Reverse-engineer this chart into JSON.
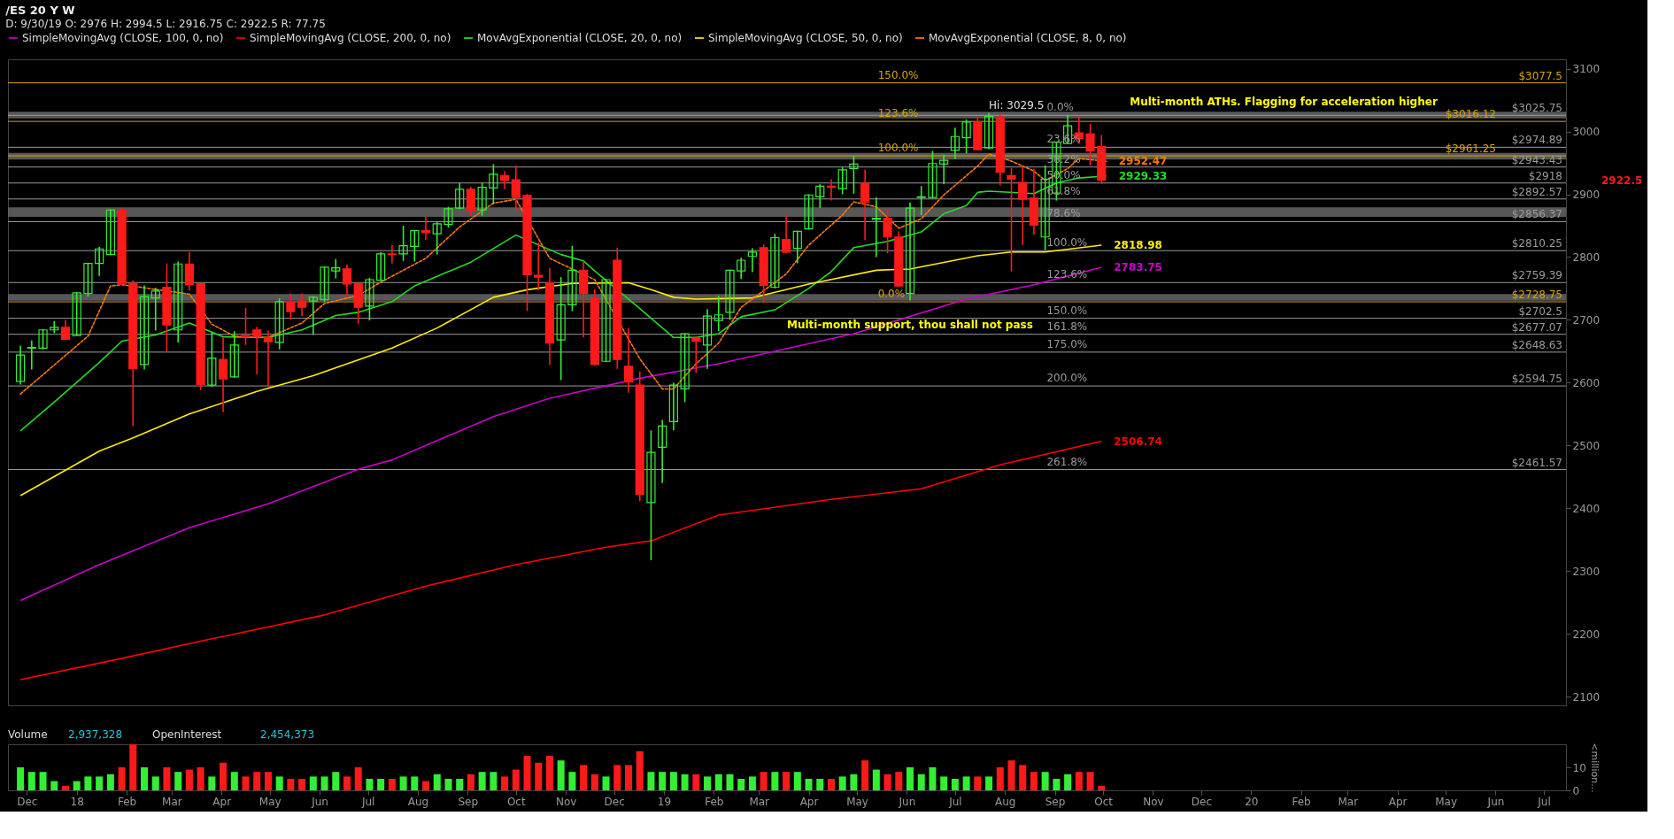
{
  "chart_data": [
    {
      "type": "candlestick",
      "title": "/ES 20 Y W",
      "subtitle": "D: 9/30/19   O: 2976   H: 2994.5   L: 2916.75   C: 2922.5   R: 77.75",
      "x": [
        "2017-11-27",
        "2017-12-04",
        "2017-12-11",
        "2017-12-18",
        "2017-12-25",
        "2018-01-01",
        "2018-01-08",
        "2018-01-15",
        "2018-01-22",
        "2018-01-29",
        "2018-02-05",
        "2018-02-12",
        "2018-02-19",
        "2018-02-26",
        "2018-03-05",
        "2018-03-12",
        "2018-03-19",
        "2018-03-26",
        "2018-04-02",
        "2018-04-09",
        "2018-04-16",
        "2018-04-23",
        "2018-04-30",
        "2018-05-07",
        "2018-05-14",
        "2018-05-21",
        "2018-05-28",
        "2018-06-04",
        "2018-06-11",
        "2018-06-18",
        "2018-06-25",
        "2018-07-02",
        "2018-07-09",
        "2018-07-16",
        "2018-07-23",
        "2018-07-30",
        "2018-08-06",
        "2018-08-13",
        "2018-08-20",
        "2018-08-27",
        "2018-09-03",
        "2018-09-10",
        "2018-09-17",
        "2018-09-24",
        "2018-10-01",
        "2018-10-08",
        "2018-10-15",
        "2018-10-22",
        "2018-10-29",
        "2018-11-05",
        "2018-11-12",
        "2018-11-19",
        "2018-11-26",
        "2018-12-03",
        "2018-12-10",
        "2018-12-17",
        "2018-12-24",
        "2018-12-31",
        "2019-01-07",
        "2019-01-14",
        "2019-01-21",
        "2019-01-28",
        "2019-02-04",
        "2019-02-11",
        "2019-02-18",
        "2019-02-25",
        "2019-03-04",
        "2019-03-11",
        "2019-03-18",
        "2019-03-25",
        "2019-04-01",
        "2019-04-08",
        "2019-04-15",
        "2019-04-22",
        "2019-04-29",
        "2019-05-06",
        "2019-05-13",
        "2019-05-20",
        "2019-05-27",
        "2019-06-03",
        "2019-06-10",
        "2019-06-17",
        "2019-06-24",
        "2019-07-01",
        "2019-07-08",
        "2019-07-15",
        "2019-07-22",
        "2019-07-29",
        "2019-08-05",
        "2019-08-12",
        "2019-08-19",
        "2019-08-26",
        "2019-09-02",
        "2019-09-09",
        "2019-09-16",
        "2019-09-23",
        "2019-09-30"
      ],
      "ohlc": [
        [
          2602,
          2659,
          2597,
          2644
        ],
        [
          2655,
          2667,
          2621,
          2656
        ],
        [
          2655,
          2685,
          2653,
          2684
        ],
        [
          2684,
          2698,
          2679,
          2688
        ],
        [
          2688,
          2700,
          2668,
          2669
        ],
        [
          2675,
          2744,
          2675,
          2743
        ],
        [
          2742,
          2791,
          2737,
          2790
        ],
        [
          2790,
          2816,
          2770,
          2813
        ],
        [
          2804,
          2876,
          2803,
          2875
        ],
        [
          2875,
          2879,
          2756,
          2757
        ],
        [
          2758,
          2763,
          2531,
          2622
        ],
        [
          2629,
          2755,
          2621,
          2737
        ],
        [
          2735,
          2751,
          2683,
          2746
        ],
        [
          2752,
          2790,
          2648,
          2692
        ],
        [
          2684,
          2793,
          2664,
          2789
        ],
        [
          2789,
          2808,
          2747,
          2756
        ],
        [
          2758,
          2758,
          2588,
          2597
        ],
        [
          2596,
          2680,
          2593,
          2639
        ],
        [
          2637,
          2672,
          2553,
          2606
        ],
        [
          2609,
          2682,
          2608,
          2660
        ],
        [
          2675,
          2719,
          2660,
          2673
        ],
        [
          2684,
          2689,
          2613,
          2673
        ],
        [
          2672,
          2683,
          2593,
          2665
        ],
        [
          2664,
          2734,
          2653,
          2729
        ],
        [
          2729,
          2742,
          2700,
          2713
        ],
        [
          2730,
          2742,
          2706,
          2720
        ],
        [
          2730,
          2738,
          2676,
          2736
        ],
        [
          2732,
          2785,
          2729,
          2784
        ],
        [
          2778,
          2797,
          2766,
          2783
        ],
        [
          2781,
          2788,
          2736,
          2757
        ],
        [
          2758,
          2758,
          2694,
          2720
        ],
        [
          2722,
          2767,
          2699,
          2764
        ],
        [
          2763,
          2808,
          2762,
          2805
        ],
        [
          2805,
          2819,
          2790,
          2804
        ],
        [
          2805,
          2850,
          2794,
          2818
        ],
        [
          2817,
          2843,
          2793,
          2842
        ],
        [
          2842,
          2864,
          2827,
          2839
        ],
        [
          2837,
          2857,
          2804,
          2853
        ],
        [
          2852,
          2880,
          2847,
          2877
        ],
        [
          2878,
          2918,
          2876,
          2908
        ],
        [
          2908,
          2912,
          2866,
          2874
        ],
        [
          2875,
          2918,
          2866,
          2911
        ],
        [
          2910,
          2948,
          2884,
          2932
        ],
        [
          2930,
          2937,
          2908,
          2922
        ],
        [
          2923,
          2946,
          2874,
          2895
        ],
        [
          2898,
          2901,
          2714,
          2772
        ],
        [
          2771,
          2823,
          2747,
          2768
        ],
        [
          2759,
          2783,
          2628,
          2663
        ],
        [
          2668,
          2768,
          2604,
          2724
        ],
        [
          2724,
          2818,
          2714,
          2779
        ],
        [
          2779,
          2793,
          2672,
          2742
        ],
        [
          2734,
          2749,
          2627,
          2629
        ],
        [
          2634,
          2765,
          2633,
          2764
        ],
        [
          2795,
          2815,
          2622,
          2637
        ],
        [
          2626,
          2687,
          2584,
          2601
        ],
        [
          2596,
          2618,
          2411,
          2422
        ],
        [
          2409,
          2524,
          2317,
          2489
        ],
        [
          2497,
          2541,
          2440,
          2531
        ],
        [
          2538,
          2600,
          2524,
          2596
        ],
        [
          2590,
          2679,
          2569,
          2678
        ],
        [
          2671,
          2673,
          2615,
          2666
        ],
        [
          2660,
          2717,
          2622,
          2706
        ],
        [
          2699,
          2738,
          2682,
          2708
        ],
        [
          2712,
          2780,
          2700,
          2779
        ],
        [
          2778,
          2799,
          2765,
          2795
        ],
        [
          2801,
          2814,
          2776,
          2808
        ],
        [
          2815,
          2820,
          2727,
          2755
        ],
        [
          2752,
          2837,
          2750,
          2831
        ],
        [
          2828,
          2867,
          2806,
          2808
        ],
        [
          2814,
          2842,
          2790,
          2841
        ],
        [
          2845,
          2900,
          2844,
          2899
        ],
        [
          2896,
          2916,
          2878,
          2913
        ],
        [
          2913,
          2924,
          2890,
          2911
        ],
        [
          2909,
          2943,
          2900,
          2939
        ],
        [
          2941,
          2961,
          2901,
          2948
        ],
        [
          2918,
          2939,
          2827,
          2887
        ],
        [
          2860,
          2895,
          2800,
          2862
        ],
        [
          2862,
          2877,
          2806,
          2832
        ],
        [
          2832,
          2841,
          2753,
          2754
        ],
        [
          2742,
          2887,
          2731,
          2878
        ],
        [
          2895,
          2913,
          2867,
          2896
        ],
        [
          2895,
          2969,
          2894,
          2949
        ],
        [
          2948,
          2963,
          2916,
          2954
        ],
        [
          2970,
          3006,
          2956,
          2992
        ],
        [
          2990,
          3019,
          2965,
          3015
        ],
        [
          3015,
          3024,
          2970,
          2971
        ],
        [
          2974,
          3029.5,
          2972,
          3024
        ],
        [
          3023,
          3027,
          2914,
          2935
        ],
        [
          2930,
          2942,
          2777,
          2924
        ],
        [
          2919,
          2944,
          2819,
          2892
        ],
        [
          2894,
          2941,
          2836,
          2851
        ],
        [
          2832,
          2946,
          2811,
          2924
        ],
        [
          2902,
          2984,
          2890,
          2983
        ],
        [
          2981,
          3026,
          2980,
          3009
        ],
        [
          2998,
          3025,
          2980,
          2989
        ],
        [
          2996,
          3012,
          2946,
          2969
        ],
        [
          2976,
          2994.5,
          2916.75,
          2922.5
        ]
      ],
      "colors": [
        "#33ee33",
        "#33ee33",
        "#33ee33",
        "#33ee33",
        "#ff1a1a",
        "#33ee33",
        "#33ee33",
        "#33ee33",
        "#33ee33",
        "#ff1a1a",
        "#ff1a1a",
        "#33ee33",
        "#33ee33",
        "#ff1a1a",
        "#33ee33",
        "#ff1a1a",
        "#ff1a1a",
        "#33ee33",
        "#ff1a1a",
        "#33ee33",
        "#ff1a1a",
        "#ff1a1a",
        "#ff1a1a",
        "#33ee33",
        "#ff1a1a",
        "#ff1a1a",
        "#33ee33",
        "#33ee33",
        "#33ee33",
        "#ff1a1a",
        "#ff1a1a",
        "#33ee33",
        "#33ee33",
        "#ff1a1a",
        "#33ee33",
        "#33ee33",
        "#ff1a1a",
        "#33ee33",
        "#33ee33",
        "#33ee33",
        "#ff1a1a",
        "#33ee33",
        "#33ee33",
        "#ff1a1a",
        "#ff1a1a",
        "#ff1a1a",
        "#ff1a1a",
        "#ff1a1a",
        "#33ee33",
        "#33ee33",
        "#ff1a1a",
        "#ff1a1a",
        "#33ee33",
        "#ff1a1a",
        "#ff1a1a",
        "#ff1a1a",
        "#33ee33",
        "#33ee33",
        "#33ee33",
        "#33ee33",
        "#ff1a1a",
        "#33ee33",
        "#33ee33",
        "#33ee33",
        "#33ee33",
        "#33ee33",
        "#ff1a1a",
        "#33ee33",
        "#ff1a1a",
        "#33ee33",
        "#33ee33",
        "#33ee33",
        "#ff1a1a",
        "#33ee33",
        "#33ee33",
        "#ff1a1a",
        "#33ee33",
        "#ff1a1a",
        "#ff1a1a",
        "#33ee33",
        "#33ee33",
        "#33ee33",
        "#33ee33",
        "#33ee33",
        "#33ee33",
        "#ff1a1a",
        "#33ee33",
        "#ff1a1a",
        "#ff1a1a",
        "#ff1a1a",
        "#ff1a1a",
        "#33ee33",
        "#33ee33",
        "#33ee33",
        "#ff1a1a",
        "#ff1a1a",
        "#ff1a1a"
      ],
      "series": [
        {
          "type": "line",
          "name": "SimpleMovingAvg (CLOSE, 100, 0, no)",
          "color": "#cc00cc",
          "line_style": "solid",
          "x": [
            "2017-11-27",
            "2018-01-15",
            "2018-03-12",
            "2018-04-30",
            "2018-06-25",
            "2018-07-16",
            "2018-09-17",
            "2018-10-22",
            "2018-12-17",
            "2019-02-04",
            "2019-02-25",
            "2019-04-29",
            "2019-07-08",
            "2019-08-19",
            "2019-09-30"
          ],
          "values": [
            2253,
            2310,
            2369,
            2407,
            2462,
            2477,
            2546,
            2575,
            2607,
            2630,
            2642,
            2678,
            2733,
            2756,
            2783.75
          ],
          "value_labels": [
            null,
            null,
            null,
            null,
            null,
            null,
            null,
            null,
            null,
            null,
            null,
            null,
            null,
            null,
            "2783.75"
          ]
        },
        {
          "type": "line",
          "name": "SimpleMovingAvg (CLOSE, 200, 0, no)",
          "color": "#ff0000",
          "line_style": "solid",
          "x": [
            "2017-11-27",
            "2018-01-22",
            "2018-03-26",
            "2018-06-04",
            "2018-08-06",
            "2018-10-01",
            "2018-11-26",
            "2018-12-24",
            "2019-02-04",
            "2019-04-15",
            "2019-06-10",
            "2019-07-29",
            "2019-09-30"
          ],
          "values": [
            2127,
            2157,
            2192,
            2230,
            2276,
            2310,
            2338,
            2348,
            2389,
            2414,
            2431,
            2469,
            2506.74
          ],
          "value_labels": [
            null,
            null,
            null,
            null,
            null,
            null,
            null,
            null,
            null,
            null,
            null,
            null,
            "2506.74"
          ]
        },
        {
          "type": "line",
          "name": "MovAvgExponential (CLOSE, 20, 0, no)",
          "color": "#22dd22",
          "line_style": "solid",
          "x": [
            "2017-11-27",
            "2017-12-18",
            "2018-01-15",
            "2018-01-29",
            "2018-02-19",
            "2018-03-12",
            "2018-04-02",
            "2018-04-30",
            "2018-05-21",
            "2018-06-11",
            "2018-06-25",
            "2018-07-16",
            "2018-07-30",
            "2018-09-03",
            "2018-10-01",
            "2018-10-29",
            "2018-11-12",
            "2018-11-19",
            "2018-12-17",
            "2019-01-07",
            "2019-01-21",
            "2019-02-04",
            "2019-02-18",
            "2019-03-11",
            "2019-04-01",
            "2019-04-15",
            "2019-04-29",
            "2019-05-20",
            "2019-06-10",
            "2019-06-24",
            "2019-07-08",
            "2019-07-15",
            "2019-07-22",
            "2019-08-19",
            "2019-09-02",
            "2019-09-16",
            "2019-10-03"
          ],
          "values": [
            2523,
            2569,
            2632,
            2666,
            2676,
            2695,
            2673,
            2672,
            2684,
            2707,
            2712,
            2729,
            2754,
            2792,
            2835,
            2804,
            2794,
            2778,
            2718,
            2672,
            2672,
            2678,
            2705,
            2716,
            2750,
            2777,
            2815,
            2825,
            2840,
            2869,
            2882,
            2903,
            2905,
            2901,
            2918,
            2926,
            2929.33
          ],
          "value_labels": [
            null,
            null,
            null,
            null,
            null,
            null,
            null,
            null,
            null,
            null,
            null,
            null,
            null,
            null,
            null,
            null,
            null,
            null,
            null,
            null,
            null,
            null,
            null,
            null,
            null,
            null,
            null,
            null,
            null,
            null,
            null,
            null,
            null,
            null,
            null,
            null,
            "2929.33"
          ]
        },
        {
          "type": "line",
          "name": "SimpleMovingAvg (CLOSE, 50, 0, no)",
          "color": "#ffee00",
          "line_style": "solid",
          "x": [
            "2017-11-27",
            "2018-01-15",
            "2018-02-05",
            "2018-03-12",
            "2018-04-23",
            "2018-05-28",
            "2018-07-16",
            "2018-08-13",
            "2018-09-17",
            "2018-10-08",
            "2018-11-05",
            "2018-12-10",
            "2018-12-24",
            "2019-01-07",
            "2019-01-21",
            "2019-02-25",
            "2019-04-01",
            "2019-05-13",
            "2019-06-03",
            "2019-07-15",
            "2019-08-05",
            "2019-08-26",
            "2019-09-30"
          ],
          "value_labels": [
            null,
            null,
            null,
            null,
            null,
            null,
            null,
            null,
            null,
            null,
            null,
            null,
            null,
            null,
            null,
            null,
            null,
            null,
            null,
            null,
            null,
            null,
            "2818.98"
          ],
          "values": [
            2420,
            2491,
            2512,
            2550,
            2586,
            2611,
            2655,
            2687,
            2736,
            2748,
            2758,
            2759,
            2748,
            2736,
            2733,
            2735,
            2757,
            2779,
            2781,
            2802,
            2808,
            2808,
            2818.98
          ]
        },
        {
          "type": "line",
          "name": "MovAvgExponential (CLOSE, 8, 0, no)",
          "color": "#ff7700",
          "line_style": "dashed",
          "x": [
            "2017-11-27",
            "2017-12-18",
            "2018-01-08",
            "2018-01-22",
            "2018-01-29",
            "2018-03-12",
            "2018-03-26",
            "2018-04-09",
            "2018-04-23",
            "2018-04-30",
            "2018-05-21",
            "2018-06-04",
            "2018-06-25",
            "2018-07-09",
            "2018-08-06",
            "2018-08-27",
            "2018-09-17",
            "2018-10-01",
            "2018-10-22",
            "2018-11-05",
            "2018-11-19",
            "2018-12-17",
            "2018-12-31",
            "2019-01-07",
            "2019-01-21",
            "2019-02-04",
            "2019-02-18",
            "2019-03-18",
            "2019-04-01",
            "2019-04-22",
            "2019-04-29",
            "2019-05-13",
            "2019-05-27",
            "2019-06-10",
            "2019-06-24",
            "2019-07-15",
            "2019-07-22",
            "2019-08-05",
            "2019-08-19",
            "2019-08-26",
            "2019-09-09",
            "2019-09-16",
            "2019-10-03"
          ],
          "values": [
            2582,
            2628,
            2674,
            2754,
            2756,
            2741,
            2693,
            2674,
            2672,
            2672,
            2695,
            2726,
            2739,
            2760,
            2798,
            2848,
            2886,
            2892,
            2798,
            2781,
            2764,
            2638,
            2590,
            2590,
            2630,
            2663,
            2720,
            2773,
            2819,
            2867,
            2888,
            2880,
            2846,
            2861,
            2899,
            2945,
            2964,
            2953,
            2937,
            2922,
            2941,
            2957,
            2952.47
          ],
          "value_labels": [
            null,
            null,
            null,
            null,
            null,
            null,
            null,
            null,
            null,
            null,
            null,
            null,
            null,
            null,
            null,
            null,
            null,
            null,
            null,
            null,
            null,
            null,
            null,
            null,
            null,
            null,
            null,
            null,
            null,
            null,
            null,
            null,
            null,
            null,
            null,
            null,
            null,
            null,
            null,
            null,
            null,
            null,
            "2952.47"
          ]
        }
      ],
      "bands": [
        {
          "axis": "y",
          "from": 3020.8,
          "to": 3031.4,
          "color": "#666666"
        },
        {
          "axis": "y",
          "from": 2955.4,
          "to": 2966,
          "color": "#666666"
        },
        {
          "axis": "y",
          "from": 2864.2,
          "to": 2879.4,
          "color": "#666666"
        },
        {
          "axis": "y",
          "from": 2730.4,
          "to": 2741,
          "color": "#666666"
        }
      ],
      "ref_lines": [
        {
          "axis": "y",
          "value": 3077.5,
          "label": "$3077.5",
          "color": "#d9a400",
          "line_style": "solid"
        },
        {
          "axis": "y",
          "value": 3025.75,
          "label": "$3025.75",
          "color": "#9a9a9a",
          "line_style": "solid"
        },
        {
          "axis": "y",
          "value": 3016.12,
          "label": "$3016.12",
          "color": "#d9a400",
          "line_style": "solid"
        },
        {
          "axis": "y",
          "value": 2974.89,
          "label": "$2974.89",
          "color": "#9a9a9a",
          "line_style": "solid"
        },
        {
          "axis": "y",
          "value": 2961.25,
          "label": "$2961.25",
          "color": "#d9a400",
          "line_style": "solid"
        },
        {
          "axis": "y",
          "value": 2943.43,
          "label": "$2943.43",
          "color": "#9a9a9a",
          "line_style": "solid"
        },
        {
          "axis": "y",
          "value": 2918,
          "label": "$2918",
          "color": "#9a9a9a",
          "line_style": "solid"
        },
        {
          "axis": "y",
          "value": 2892.57,
          "label": "$2892.57",
          "color": "#9a9a9a",
          "line_style": "solid"
        },
        {
          "axis": "y",
          "value": 2856.37,
          "label": "$2856.37",
          "color": "#9a9a9a",
          "line_style": "solid"
        },
        {
          "axis": "y",
          "value": 2810.25,
          "label": "$2810.25",
          "color": "#9a9a9a",
          "line_style": "solid"
        },
        {
          "axis": "y",
          "value": 2759.39,
          "label": "$2759.39",
          "color": "#9a9a9a",
          "line_style": "solid"
        },
        {
          "axis": "y",
          "value": 2728.75,
          "label": "$2728.75",
          "color": "#d9a400",
          "line_style": "solid"
        },
        {
          "axis": "y",
          "value": 2702.5,
          "label": "$2702.5",
          "color": "#9a9a9a",
          "line_style": "solid"
        },
        {
          "axis": "y",
          "value": 2677.07,
          "label": "$2677.07",
          "color": "#9a9a9a",
          "line_style": "solid"
        },
        {
          "axis": "y",
          "value": 2648.63,
          "label": "$2648.63",
          "color": "#9a9a9a",
          "line_style": "solid"
        },
        {
          "axis": "y",
          "value": 2594.75,
          "label": "$2594.75",
          "color": "#9a9a9a",
          "line_style": "solid"
        },
        {
          "axis": "y",
          "value": 2461.57,
          "label": "$2461.57",
          "color": "#9a9a9a",
          "line_style": "solid"
        }
      ],
      "annotations": [
        {
          "text": "150.0%",
          "x": "2019-05-14",
          "y": 3077.5
        },
        {
          "text": "123.6%",
          "x": "2019-05-14",
          "y": 3016.12
        },
        {
          "text": "100.0%",
          "x": "2019-05-14",
          "y": 2961.25
        },
        {
          "text": "0.0%",
          "x": "2019-05-14",
          "y": 2728.75
        },
        {
          "text": "0.0%",
          "x": "2019-08-27",
          "y": 3025.75
        },
        {
          "text": "23.6%",
          "x": "2019-08-27",
          "y": 2974.89
        },
        {
          "text": "38.2%",
          "x": "2019-08-27",
          "y": 2943.43
        },
        {
          "text": "50.0%",
          "x": "2019-08-27",
          "y": 2918
        },
        {
          "text": "61.8%",
          "x": "2019-08-27",
          "y": 2892.57
        },
        {
          "text": "78.6%",
          "x": "2019-08-27",
          "y": 2856.37
        },
        {
          "text": "100.0%",
          "x": "2019-08-27",
          "y": 2810.25
        },
        {
          "text": "123.6%",
          "x": "2019-08-27",
          "y": 2759.39
        },
        {
          "text": "150.0%",
          "x": "2019-08-27",
          "y": 2702.5
        },
        {
          "text": "161.8%",
          "x": "2019-08-27",
          "y": 2677.07
        },
        {
          "text": "175.0%",
          "x": "2019-08-27",
          "y": 2648.63
        },
        {
          "text": "200.0%",
          "x": "2019-08-27",
          "y": 2594.75
        },
        {
          "text": "261.8%",
          "x": "2019-08-27",
          "y": 2461.57
        },
        {
          "text": "Hi: 3029.5",
          "x": "2019-07-22",
          "y": 3029.5
        },
        "Multi-month ATHs. Flagging for acceleration higher",
        "Multi-month support, thou shall not pass",
        "2922.5"
      ],
      "xlim": [
        "2017-11-22",
        "2020-07-12"
      ],
      "ylim": [
        2086,
        3115
      ],
      "yticks": [
        2100,
        2200,
        2300,
        2400,
        2500,
        2600,
        2700,
        2800,
        2900,
        3000,
        3100
      ],
      "tick_labels": "y",
      "legend": "top",
      "grid": false
    },
    {
      "type": "bar",
      "title": "Volume",
      "ylabel": "<million...",
      "x": [
        "2017-11-27",
        "2017-12-04",
        "2017-12-11",
        "2017-12-18",
        "2017-12-25",
        "2018-01-01",
        "2018-01-08",
        "2018-01-15",
        "2018-01-22",
        "2018-01-29",
        "2018-02-05",
        "2018-02-12",
        "2018-02-19",
        "2018-02-26",
        "2018-03-05",
        "2018-03-12",
        "2018-03-19",
        "2018-03-26",
        "2018-04-02",
        "2018-04-09",
        "2018-04-16",
        "2018-04-23",
        "2018-04-30",
        "2018-05-07",
        "2018-05-14",
        "2018-05-21",
        "2018-05-28",
        "2018-06-04",
        "2018-06-11",
        "2018-06-18",
        "2018-06-25",
        "2018-07-02",
        "2018-07-09",
        "2018-07-16",
        "2018-07-23",
        "2018-07-30",
        "2018-08-06",
        "2018-08-13",
        "2018-08-20",
        "2018-08-27",
        "2018-09-03",
        "2018-09-10",
        "2018-09-17",
        "2018-09-24",
        "2018-10-01",
        "2018-10-08",
        "2018-10-15",
        "2018-10-22",
        "2018-10-29",
        "2018-11-05",
        "2018-11-12",
        "2018-11-19",
        "2018-11-26",
        "2018-12-03",
        "2018-12-10",
        "2018-12-17",
        "2018-12-24",
        "2018-12-31",
        "2019-01-07",
        "2019-01-14",
        "2019-01-21",
        "2019-01-28",
        "2019-02-04",
        "2019-02-11",
        "2019-02-18",
        "2019-02-25",
        "2019-03-04",
        "2019-03-11",
        "2019-03-18",
        "2019-03-25",
        "2019-04-01",
        "2019-04-08",
        "2019-04-15",
        "2019-04-22",
        "2019-04-29",
        "2019-05-06",
        "2019-05-13",
        "2019-05-20",
        "2019-05-27",
        "2019-06-03",
        "2019-06-10",
        "2019-06-17",
        "2019-06-24",
        "2019-07-01",
        "2019-07-08",
        "2019-07-15",
        "2019-07-22",
        "2019-07-29",
        "2019-08-05",
        "2019-08-12",
        "2019-08-19",
        "2019-08-26",
        "2019-09-02",
        "2019-09-09",
        "2019-09-16",
        "2019-09-23",
        "2019-09-30"
      ],
      "values": [
        10,
        8,
        8,
        4,
        2,
        4,
        6,
        6,
        7,
        10,
        20,
        10,
        6,
        10,
        8,
        9,
        10,
        6,
        12,
        8,
        6,
        8,
        8,
        6,
        5,
        5,
        6,
        6,
        8,
        6,
        10,
        5,
        5,
        5,
        6,
        6,
        4,
        7,
        5,
        5,
        7,
        8,
        8,
        6,
        9,
        15,
        12,
        15,
        13,
        8,
        11,
        7,
        6,
        11,
        11,
        17,
        8,
        8,
        8,
        7,
        7,
        6,
        7,
        7,
        5,
        6,
        8,
        8,
        8,
        8,
        5,
        5,
        5,
        6,
        7,
        13,
        9,
        7,
        8,
        10,
        7,
        10,
        6,
        5,
        6,
        6,
        6,
        10,
        13,
        11,
        8,
        8,
        5,
        7,
        8,
        8,
        2
      ],
      "colors": [
        "#33ee33",
        "#33ee33",
        "#33ee33",
        "#33ee33",
        "#ff1a1a",
        "#33ee33",
        "#33ee33",
        "#33ee33",
        "#33ee33",
        "#ff1a1a",
        "#ff1a1a",
        "#33ee33",
        "#33ee33",
        "#ff1a1a",
        "#33ee33",
        "#ff1a1a",
        "#ff1a1a",
        "#33ee33",
        "#ff1a1a",
        "#33ee33",
        "#ff1a1a",
        "#ff1a1a",
        "#ff1a1a",
        "#33ee33",
        "#ff1a1a",
        "#ff1a1a",
        "#33ee33",
        "#33ee33",
        "#33ee33",
        "#ff1a1a",
        "#ff1a1a",
        "#33ee33",
        "#33ee33",
        "#ff1a1a",
        "#33ee33",
        "#33ee33",
        "#ff1a1a",
        "#33ee33",
        "#33ee33",
        "#33ee33",
        "#ff1a1a",
        "#33ee33",
        "#33ee33",
        "#ff1a1a",
        "#ff1a1a",
        "#ff1a1a",
        "#ff1a1a",
        "#ff1a1a",
        "#33ee33",
        "#33ee33",
        "#ff1a1a",
        "#ff1a1a",
        "#33ee33",
        "#ff1a1a",
        "#ff1a1a",
        "#ff1a1a",
        "#33ee33",
        "#33ee33",
        "#33ee33",
        "#33ee33",
        "#ff1a1a",
        "#33ee33",
        "#33ee33",
        "#33ee33",
        "#33ee33",
        "#33ee33",
        "#ff1a1a",
        "#33ee33",
        "#ff1a1a",
        "#33ee33",
        "#33ee33",
        "#33ee33",
        "#ff1a1a",
        "#33ee33",
        "#33ee33",
        "#ff1a1a",
        "#33ee33",
        "#ff1a1a",
        "#ff1a1a",
        "#33ee33",
        "#33ee33",
        "#33ee33",
        "#33ee33",
        "#33ee33",
        "#33ee33",
        "#ff1a1a",
        "#33ee33",
        "#ff1a1a",
        "#ff1a1a",
        "#ff1a1a",
        "#ff1a1a",
        "#33ee33",
        "#33ee33",
        "#33ee33",
        "#ff1a1a",
        "#ff1a1a",
        "#ff1a1a"
      ],
      "annotations": [
        "2,937,328",
        "OpenInterest",
        "2,454,373"
      ],
      "xlim": [
        "2017-11-22",
        "2020-07-12"
      ],
      "xticks": [
        {
          "value": "2017-12-01",
          "label": "Dec"
        },
        {
          "value": "2018-01-01",
          "label": "18"
        },
        {
          "value": "2018-02-01",
          "label": "Feb"
        },
        {
          "value": "2018-03-01",
          "label": "Mar"
        },
        {
          "value": "2018-04-01",
          "label": "Apr"
        },
        {
          "value": "2018-05-01",
          "label": "May"
        },
        {
          "value": "2018-06-01",
          "label": "Jun"
        },
        {
          "value": "2018-07-01",
          "label": "Jul"
        },
        {
          "value": "2018-08-01",
          "label": "Aug"
        },
        {
          "value": "2018-09-01",
          "label": "Sep"
        },
        {
          "value": "2018-10-01",
          "label": "Oct"
        },
        {
          "value": "2018-11-01",
          "label": "Nov"
        },
        {
          "value": "2018-12-01",
          "label": "Dec"
        },
        {
          "value": "2019-01-01",
          "label": "19"
        },
        {
          "value": "2019-02-01",
          "label": "Feb"
        },
        {
          "value": "2019-03-01",
          "label": "Mar"
        },
        {
          "value": "2019-04-01",
          "label": "Apr"
        },
        {
          "value": "2019-05-01",
          "label": "May"
        },
        {
          "value": "2019-06-01",
          "label": "Jun"
        },
        {
          "value": "2019-07-01",
          "label": "Jul"
        },
        {
          "value": "2019-08-01",
          "label": "Aug"
        },
        {
          "value": "2019-09-01",
          "label": "Sep"
        },
        {
          "value": "2019-10-01",
          "label": "Oct"
        },
        {
          "value": "2019-11-01",
          "label": "Nov"
        },
        {
          "value": "2019-12-01",
          "label": "Dec"
        },
        {
          "value": "2020-01-01",
          "label": "20"
        },
        {
          "value": "2020-02-01",
          "label": "Feb"
        },
        {
          "value": "2020-03-01",
          "label": "Mar"
        },
        {
          "value": "2020-04-01",
          "label": "Apr"
        },
        {
          "value": "2020-05-01",
          "label": "May"
        },
        {
          "value": "2020-06-01",
          "label": "Jun"
        },
        {
          "value": "2020-07-01",
          "label": "Jul"
        }
      ],
      "ylim": [
        0,
        20
      ],
      "yticks": [
        0,
        10
      ],
      "grid": false
    }
  ]
}
